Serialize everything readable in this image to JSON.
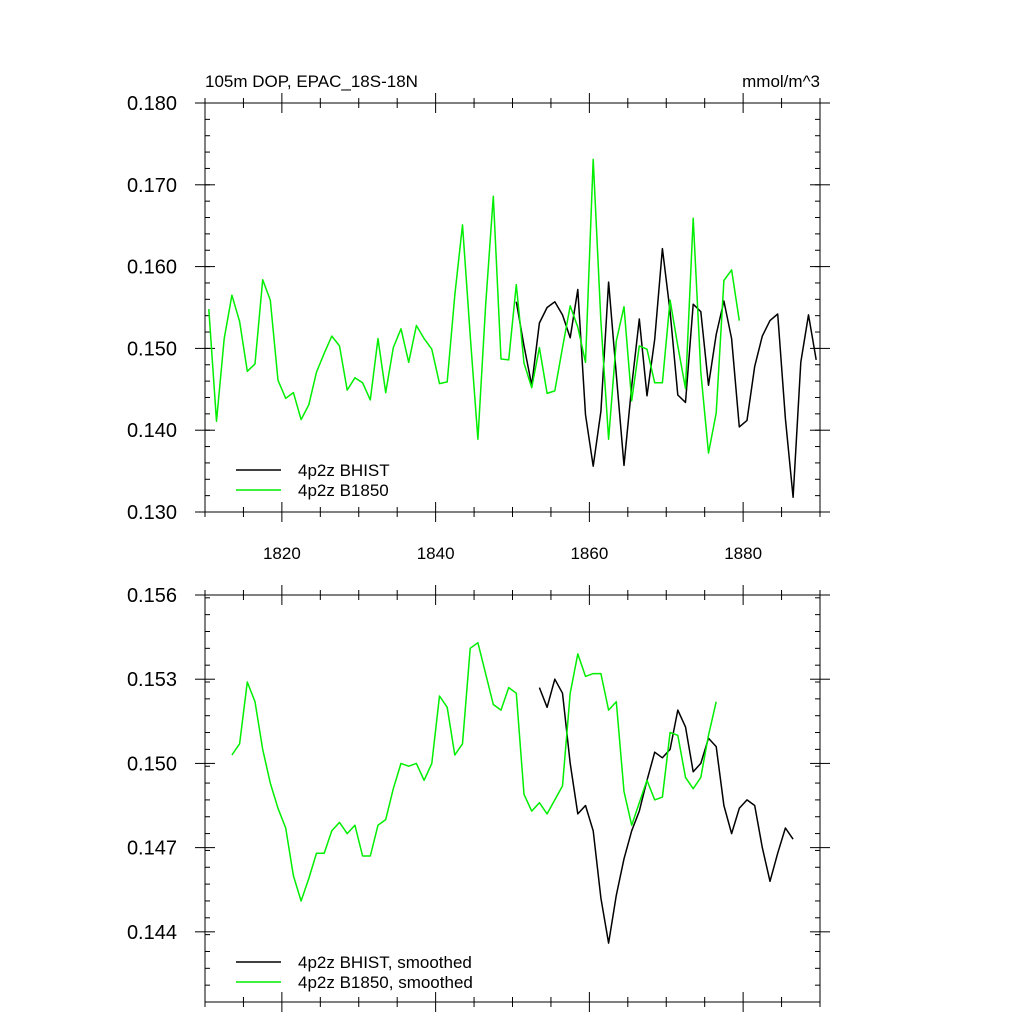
{
  "chart_data": [
    {
      "type": "line",
      "title_left": "105m DOP, EPAC_18S-18N",
      "title_right": "mmol/m^3",
      "xlim": [
        1810,
        1890
      ],
      "ylim": [
        0.13,
        0.18
      ],
      "xticks": [
        1820,
        1840,
        1860,
        1880
      ],
      "xtick_labels": [
        "1820",
        "1840",
        "1860",
        "1880"
      ],
      "yticks": [
        0.13,
        0.14,
        0.15,
        0.16,
        0.17,
        0.18
      ],
      "ytick_labels": [
        "0.130",
        "0.140",
        "0.150",
        "0.160",
        "0.170",
        "0.180"
      ],
      "legend_position": "bottom-left",
      "series": [
        {
          "name": "4p2z BHIST",
          "color": "#000000",
          "x": [
            1850.5,
            1851.5,
            1852.5,
            1853.5,
            1854.5,
            1855.5,
            1856.5,
            1857.5,
            1858.5,
            1859.5,
            1860.5,
            1861.5,
            1862.5,
            1863.5,
            1864.5,
            1865.5,
            1866.5,
            1867.5,
            1868.5,
            1869.5,
            1870.5,
            1871.5,
            1872.5,
            1873.5,
            1874.5,
            1875.5,
            1876.5,
            1877.5,
            1878.5,
            1879.5,
            1880.5,
            1881.5,
            1882.5,
            1883.5,
            1884.5,
            1885.5,
            1886.5,
            1887.5,
            1888.5,
            1889.5
          ],
          "values": [
            0.1557,
            0.1503,
            0.1455,
            0.1531,
            0.155,
            0.1557,
            0.1541,
            0.1513,
            0.1572,
            0.1419,
            0.1356,
            0.1423,
            0.1581,
            0.1468,
            0.1357,
            0.1454,
            0.1536,
            0.1442,
            0.1511,
            0.1622,
            0.1545,
            0.1443,
            0.1434,
            0.1554,
            0.1545,
            0.1455,
            0.1517,
            0.1558,
            0.1512,
            0.1404,
            0.1412,
            0.1478,
            0.1515,
            0.1534,
            0.1542,
            0.1414,
            0.1318,
            0.1483,
            0.1541,
            0.1486
          ]
        },
        {
          "name": "4p2z B1850",
          "color": "#00ee00",
          "x": [
            1810.5,
            1811.5,
            1812.5,
            1813.5,
            1814.5,
            1815.5,
            1816.5,
            1817.5,
            1818.5,
            1819.5,
            1820.5,
            1821.5,
            1822.5,
            1823.5,
            1824.5,
            1825.5,
            1826.5,
            1827.5,
            1828.5,
            1829.5,
            1830.5,
            1831.5,
            1832.5,
            1833.5,
            1834.5,
            1835.5,
            1836.5,
            1837.5,
            1838.5,
            1839.5,
            1840.5,
            1841.5,
            1842.5,
            1843.5,
            1844.5,
            1845.5,
            1846.5,
            1847.5,
            1848.5,
            1849.5,
            1850.5,
            1851.5,
            1852.5,
            1853.5,
            1854.5,
            1855.5,
            1856.5,
            1857.5,
            1858.5,
            1859.5,
            1860.5,
            1861.5,
            1862.5,
            1863.5,
            1864.5,
            1865.5,
            1866.5,
            1867.5,
            1868.5,
            1869.5,
            1870.5,
            1871.5,
            1872.5,
            1873.5,
            1874.5,
            1875.5,
            1876.5,
            1877.5,
            1878.5,
            1879.5
          ],
          "values": [
            0.1548,
            0.1411,
            0.1512,
            0.1565,
            0.1533,
            0.1472,
            0.1481,
            0.1584,
            0.1559,
            0.1461,
            0.1439,
            0.1446,
            0.1413,
            0.1431,
            0.1471,
            0.1494,
            0.1515,
            0.1503,
            0.1449,
            0.1464,
            0.1458,
            0.1437,
            0.1512,
            0.1446,
            0.1501,
            0.1524,
            0.1483,
            0.1528,
            0.1512,
            0.1499,
            0.1457,
            0.1459,
            0.1565,
            0.1651,
            0.1516,
            0.1389,
            0.1552,
            0.1686,
            0.1487,
            0.1486,
            0.1578,
            0.1482,
            0.1452,
            0.1501,
            0.1445,
            0.1448,
            0.1501,
            0.1552,
            0.1526,
            0.1483,
            0.1731,
            0.1533,
            0.1389,
            0.1509,
            0.1551,
            0.1436,
            0.1503,
            0.1499,
            0.1458,
            0.1458,
            0.1559,
            0.1503,
            0.1451,
            0.1659,
            0.1471,
            0.1372,
            0.1421,
            0.1583,
            0.1596,
            0.1534
          ]
        }
      ]
    },
    {
      "type": "line",
      "xlim": [
        1810,
        1890
      ],
      "ylim": [
        0.1415,
        0.156
      ],
      "xticks": [
        1820,
        1840,
        1860,
        1880
      ],
      "yticks": [
        0.144,
        0.147,
        0.15,
        0.153,
        0.156
      ],
      "ytick_labels": [
        "0.144",
        "0.147",
        "0.150",
        "0.153",
        "0.156"
      ],
      "legend_position": "bottom-left",
      "series": [
        {
          "name": "4p2z BHIST, smoothed",
          "color": "#000000",
          "x": [
            1853.5,
            1854.5,
            1855.5,
            1856.5,
            1857.5,
            1858.5,
            1859.5,
            1860.5,
            1861.5,
            1862.5,
            1863.5,
            1864.5,
            1865.5,
            1866.5,
            1867.5,
            1868.5,
            1869.5,
            1870.5,
            1871.5,
            1872.5,
            1873.5,
            1874.5,
            1875.5,
            1876.5,
            1877.5,
            1878.5,
            1879.5,
            1880.5,
            1881.5,
            1882.5,
            1883.5,
            1884.5,
            1885.5,
            1886.5
          ],
          "values": [
            0.1527,
            0.152,
            0.153,
            0.1525,
            0.15,
            0.1482,
            0.1485,
            0.1476,
            0.1452,
            0.1436,
            0.1453,
            0.1466,
            0.1476,
            0.1483,
            0.1494,
            0.1504,
            0.1502,
            0.1505,
            0.1519,
            0.1513,
            0.1497,
            0.15,
            0.1509,
            0.1506,
            0.1485,
            0.1475,
            0.1484,
            0.1487,
            0.1485,
            0.147,
            0.1458,
            0.1468,
            0.1477,
            0.1473
          ]
        },
        {
          "name": "4p2z B1850, smoothed",
          "color": "#00ee00",
          "x": [
            1813.5,
            1814.5,
            1815.5,
            1816.5,
            1817.5,
            1818.5,
            1819.5,
            1820.5,
            1821.5,
            1822.5,
            1823.5,
            1824.5,
            1825.5,
            1826.5,
            1827.5,
            1828.5,
            1829.5,
            1830.5,
            1831.5,
            1832.5,
            1833.5,
            1834.5,
            1835.5,
            1836.5,
            1837.5,
            1838.5,
            1839.5,
            1840.5,
            1841.5,
            1842.5,
            1843.5,
            1844.5,
            1845.5,
            1846.5,
            1847.5,
            1848.5,
            1849.5,
            1850.5,
            1851.5,
            1852.5,
            1853.5,
            1854.5,
            1855.5,
            1856.5,
            1857.5,
            1858.5,
            1859.5,
            1860.5,
            1861.5,
            1862.5,
            1863.5,
            1864.5,
            1865.5,
            1866.5,
            1867.5,
            1868.5,
            1869.5,
            1870.5,
            1871.5,
            1872.5,
            1873.5,
            1874.5,
            1875.5,
            1876.5
          ],
          "values": [
            0.1503,
            0.1507,
            0.1529,
            0.1522,
            0.1505,
            0.1493,
            0.1484,
            0.1477,
            0.146,
            0.1451,
            0.1459,
            0.1468,
            0.1468,
            0.1476,
            0.1479,
            0.1475,
            0.1478,
            0.1467,
            0.1467,
            0.1478,
            0.148,
            0.1491,
            0.15,
            0.1499,
            0.15,
            0.1494,
            0.15,
            0.1524,
            0.152,
            0.1503,
            0.1507,
            0.1541,
            0.1543,
            0.1532,
            0.1521,
            0.1519,
            0.1527,
            0.1525,
            0.1489,
            0.1483,
            0.1486,
            0.1482,
            0.1487,
            0.1492,
            0.1525,
            0.1539,
            0.1531,
            0.1532,
            0.1532,
            0.1519,
            0.1522,
            0.149,
            0.1478,
            0.1486,
            0.1494,
            0.1487,
            0.1488,
            0.1511,
            0.151,
            0.1495,
            0.1491,
            0.1495,
            0.151,
            0.1522
          ]
        }
      ]
    }
  ]
}
